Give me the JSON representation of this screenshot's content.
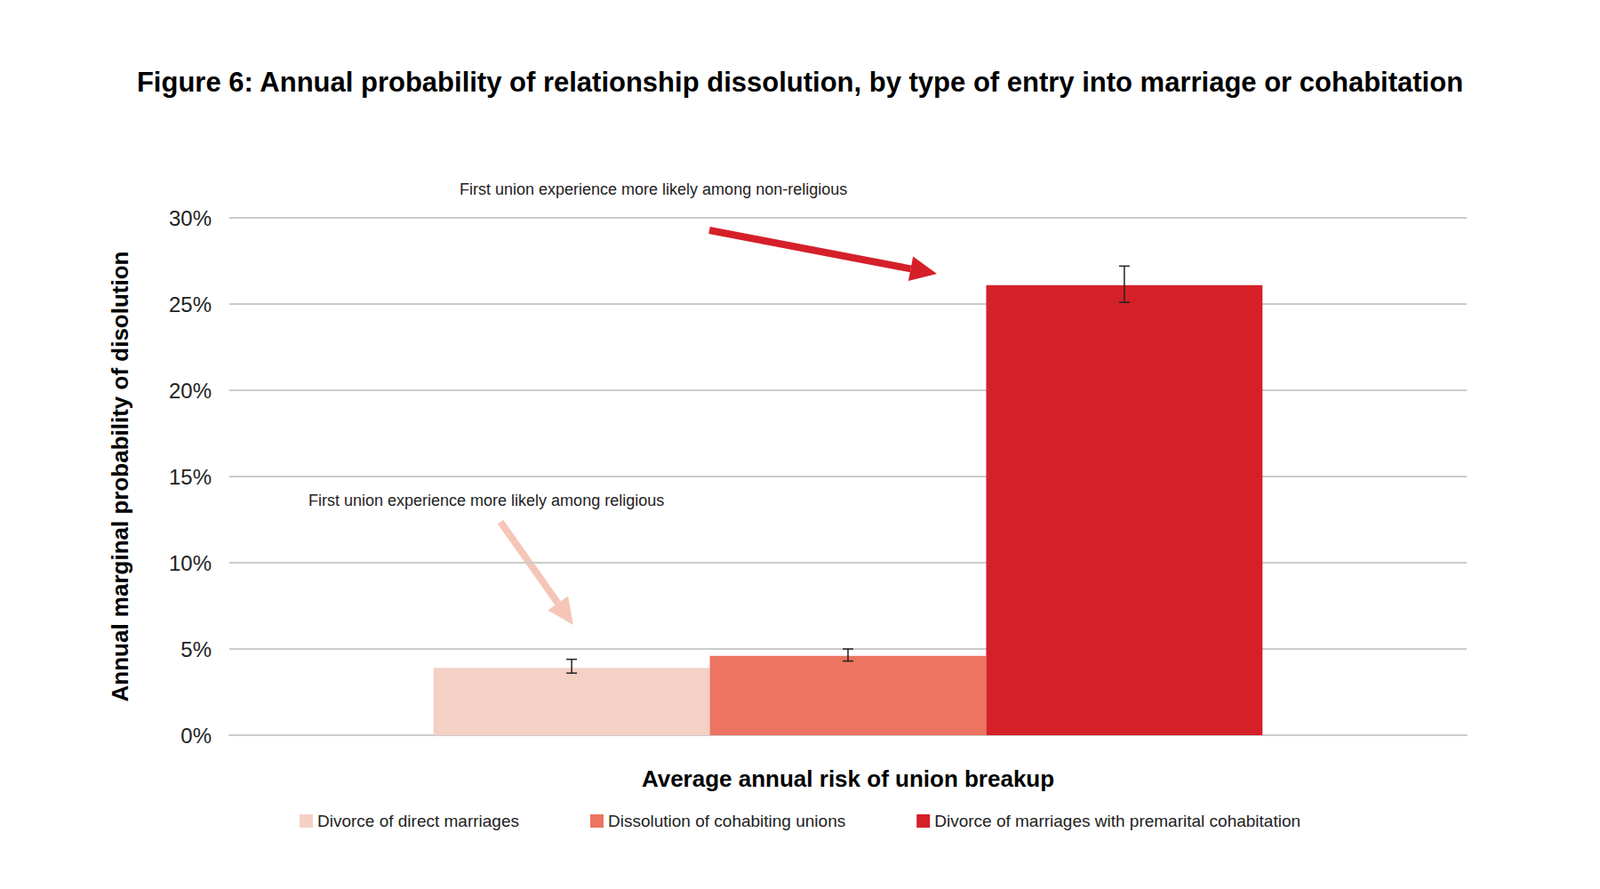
{
  "chart_data": {
    "type": "bar",
    "title": "Figure 6: Annual probability of relationship dissolution, by type of entry into marriage or cohabitation",
    "categories": [
      null
    ],
    "x_label": "Average annual risk of union breakup",
    "y_label": "Annual marginal probability of disolution",
    "series": [
      {
        "name": "Divorce of direct marriages",
        "color": "#f5d0c4",
        "values": [
          3.9
        ],
        "error_low": [
          3.6
        ],
        "error_high": [
          4.4
        ]
      },
      {
        "name": "Dissolution of cohabiting unions",
        "color": "#ec7461",
        "values": [
          4.6
        ],
        "error_low": [
          4.3
        ],
        "error_high": [
          5.0
        ]
      },
      {
        "name": "Divorce of marriages with premarital cohabitation",
        "color": "#d52029",
        "values": [
          26.1
        ],
        "error_low": [
          25.1
        ],
        "error_high": [
          27.2
        ]
      }
    ],
    "ylim": [
      0,
      30
    ],
    "yticks": [
      {
        "value": 0,
        "label": "0%"
      },
      {
        "value": 5,
        "label": "5%"
      },
      {
        "value": 10,
        "label": "10%"
      },
      {
        "value": 15,
        "label": "15%"
      },
      {
        "value": 20,
        "label": "20%"
      },
      {
        "value": 25,
        "label": "25%"
      },
      {
        "value": 30,
        "label": "30%"
      }
    ],
    "grid": true,
    "legend": "bottom",
    "annotations": [
      {
        "text": "First union experience more likely among non-religious"
      },
      {
        "text": "First union experience more likely among religious"
      }
    ]
  }
}
